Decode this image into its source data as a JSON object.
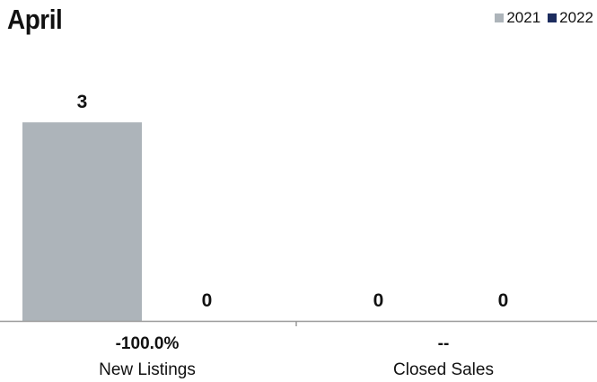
{
  "chart_data": {
    "type": "bar",
    "title": "April",
    "categories": [
      "New Listings",
      "Closed Sales"
    ],
    "change_labels": [
      "-100.0%",
      "--"
    ],
    "series": [
      {
        "name": "2021",
        "values": [
          3,
          0
        ]
      },
      {
        "name": "2022",
        "values": [
          0,
          0
        ]
      }
    ],
    "data_labels": [
      [
        "3",
        "0"
      ],
      [
        "0",
        "0"
      ]
    ],
    "ylim": [
      0,
      3.45
    ],
    "grid": false,
    "legend_position": "top-right",
    "colors": [
      "#adb4ba",
      "#1c2c5e"
    ]
  }
}
